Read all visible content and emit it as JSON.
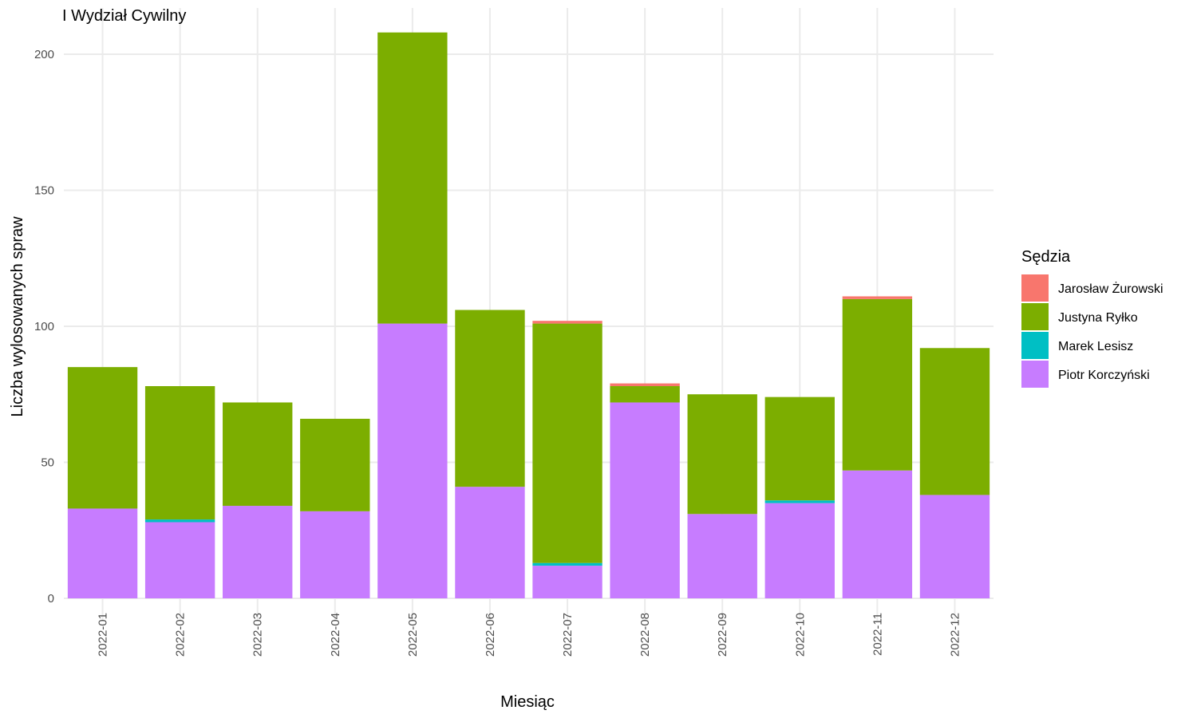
{
  "chart_data": {
    "type": "bar",
    "stacked": true,
    "title": "I Wydział Cywilny",
    "xlabel": "Miesiąc",
    "ylabel": "Liczba wylosowanych spraw",
    "ylim": [
      0,
      215
    ],
    "yticks": [
      0,
      50,
      100,
      150,
      200
    ],
    "grid": true,
    "categories": [
      "2022-01",
      "2022-02",
      "2022-03",
      "2022-04",
      "2022-05",
      "2022-06",
      "2022-07",
      "2022-08",
      "2022-09",
      "2022-10",
      "2022-11",
      "2022-12"
    ],
    "legend": {
      "title": "Sędzia",
      "position": "right"
    },
    "series": [
      {
        "name": "Piotr Korczyński",
        "color": "#C77CFF",
        "values": [
          33,
          28,
          34,
          32,
          101,
          41,
          12,
          72,
          31,
          35,
          47,
          38
        ]
      },
      {
        "name": "Marek Lesisz",
        "color": "#00BFC4",
        "values": [
          0,
          1,
          0,
          0,
          0,
          0,
          1,
          0,
          0,
          1,
          0,
          0
        ]
      },
      {
        "name": "Justyna Ryłko",
        "color": "#7CAE00",
        "values": [
          52,
          49,
          38,
          34,
          107,
          65,
          88,
          6,
          44,
          38,
          63,
          54
        ]
      },
      {
        "name": "Jarosław Żurowski",
        "color": "#F8766D",
        "values": [
          0,
          0,
          0,
          0,
          0,
          0,
          1,
          1,
          0,
          0,
          1,
          0
        ]
      }
    ],
    "legend_order": [
      "Jarosław Żurowski",
      "Justyna Ryłko",
      "Marek Lesisz",
      "Piotr Korczyński"
    ]
  }
}
